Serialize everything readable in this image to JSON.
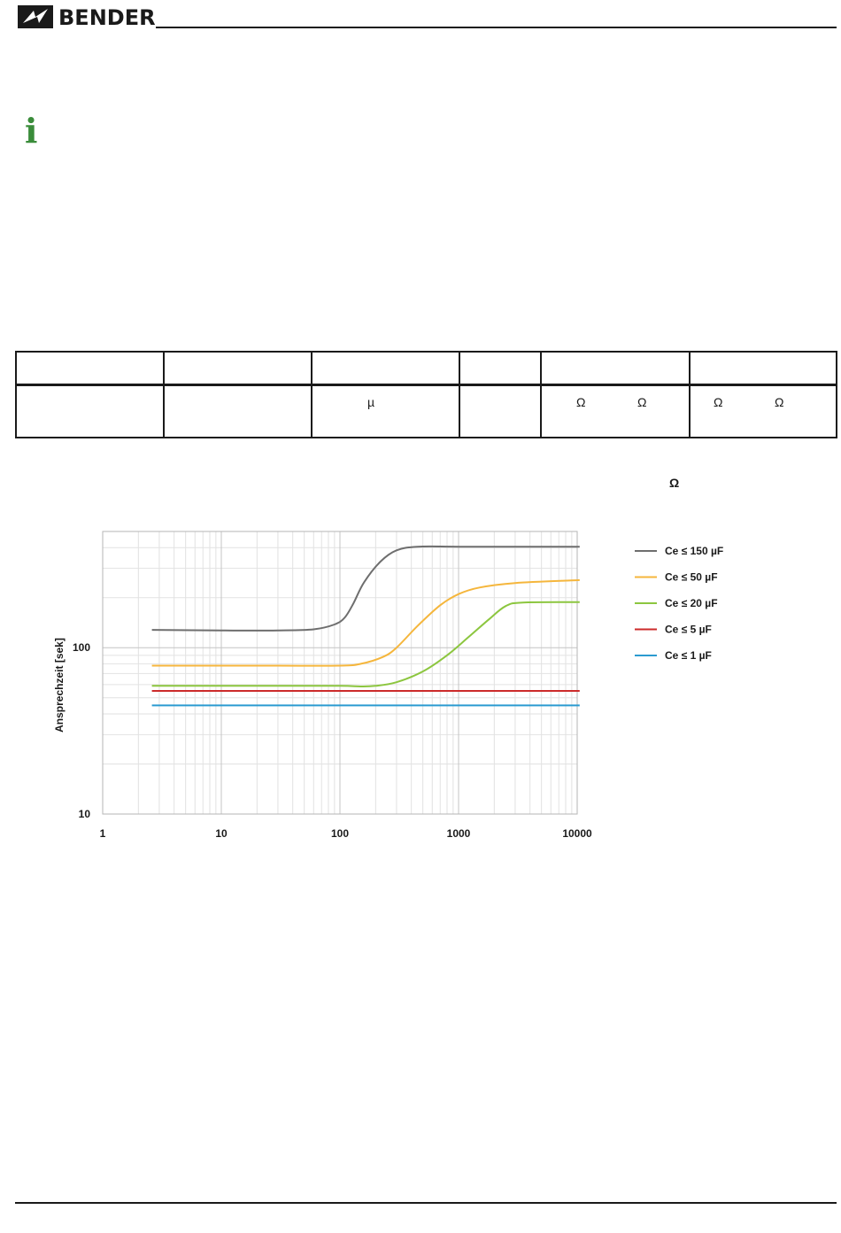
{
  "header": {
    "brand": "BENDER",
    "logo_icon": "bender-lightning-logo"
  },
  "info_icon": "info-icon",
  "table": {
    "columns": 6,
    "symbols": {
      "capacitance_unit": "µ",
      "ohm": "Ω"
    }
  },
  "note_symbol": "Ω",
  "chart_data": {
    "type": "line",
    "xscale": "log",
    "yscale": "log",
    "xlim": [
      1,
      10000
    ],
    "ylim": [
      10,
      500
    ],
    "xticks": [
      "1",
      "10",
      "100",
      "1000",
      "10000"
    ],
    "yticks": [
      "10",
      "100"
    ],
    "ylabel": "Ansprechzeit [sek]",
    "xlabel": "",
    "grid": true,
    "legend_position": "right",
    "series": [
      {
        "name": "Ce ≤ 150 µF",
        "color": "#6e6e6e",
        "x": [
          2.6,
          10,
          30,
          60,
          90,
          110,
          130,
          160,
          220,
          300,
          450,
          1000,
          3000,
          10500
        ],
        "y": [
          128,
          127,
          127,
          129,
          138,
          152,
          185,
          248,
          330,
          385,
          405,
          405,
          405,
          405
        ]
      },
      {
        "name": "Ce ≤ 50 µF",
        "color": "#f5b63c",
        "x": [
          2.6,
          10,
          30,
          100,
          150,
          230,
          300,
          450,
          700,
          1000,
          1500,
          3000,
          10500
        ],
        "y": [
          78,
          78,
          78,
          78,
          80,
          88,
          100,
          135,
          180,
          210,
          230,
          245,
          255
        ]
      },
      {
        "name": "Ce ≤ 20 µF",
        "color": "#8cc63f",
        "x": [
          2.6,
          10,
          30,
          100,
          150,
          200,
          300,
          500,
          800,
          1200,
          1800,
          2500,
          3500,
          10500
        ],
        "y": [
          59,
          59,
          59,
          59,
          58.5,
          59,
          62,
          72,
          90,
          115,
          148,
          178,
          187,
          188
        ]
      },
      {
        "name": "Ce ≤ 5 µF",
        "color": "#cc2a2a",
        "x": [
          2.6,
          10500
        ],
        "y": [
          55,
          55
        ]
      },
      {
        "name": "Ce ≤ 1 µF",
        "color": "#2b9bd0",
        "x": [
          2.6,
          10500
        ],
        "y": [
          45,
          45
        ]
      }
    ]
  }
}
